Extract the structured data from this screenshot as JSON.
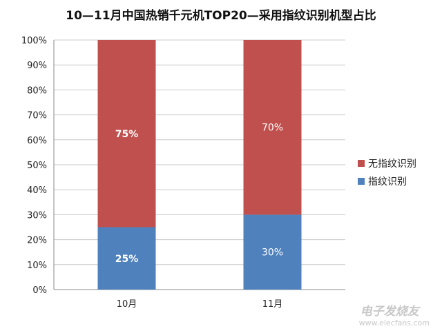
{
  "chart_data": {
    "type": "bar",
    "stacked": true,
    "title": "10—11月中国热销千元机TOP20—采用指纹识别机型占比",
    "categories": [
      "10月",
      "11月"
    ],
    "series": [
      {
        "name": "指纹识别",
        "values": [
          25,
          30
        ],
        "labels": [
          "25%",
          "30%"
        ],
        "color": "#4f81bd"
      },
      {
        "name": "无指纹识别",
        "values": [
          75,
          70
        ],
        "labels": [
          "75%",
          "70%"
        ],
        "color": "#c0504d"
      }
    ],
    "ylim": [
      0,
      100
    ],
    "yticks": [
      "0%",
      "10%",
      "20%",
      "30%",
      "40%",
      "50%",
      "60%",
      "70%",
      "80%",
      "90%",
      "100%"
    ],
    "grid": true,
    "legend": "right"
  },
  "watermark": {
    "name": "电子发烧友",
    "url": "www.elecfans.com"
  }
}
